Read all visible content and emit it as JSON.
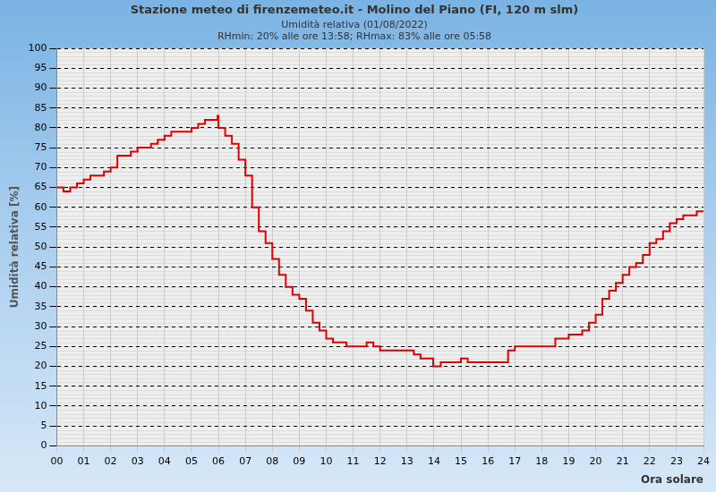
{
  "chart_data": {
    "type": "line",
    "title": "Stazione meteo di firenzemeteo.it - Molino del Piano (FI, 120 m slm)",
    "subtitle": [
      "Umidità relativa (01/08/2022)",
      "RHmin: 20% alle ore 13:58; RHmax: 83% alle ore 05:58"
    ],
    "x_label": "Ora solare",
    "y_label": "Umidità relativa [%]",
    "color": "#e00000",
    "x": [
      0,
      0.25,
      0.5,
      0.75,
      1,
      1.25,
      1.5,
      1.75,
      2,
      2.25,
      2.5,
      2.75,
      3,
      3.25,
      3.5,
      3.75,
      4,
      4.25,
      4.5,
      4.75,
      5,
      5.25,
      5.5,
      5.75,
      5.97,
      6,
      6.25,
      6.5,
      6.75,
      7,
      7.25,
      7.5,
      7.75,
      8,
      8.25,
      8.5,
      8.75,
      9,
      9.25,
      9.5,
      9.75,
      10,
      10.25,
      10.5,
      10.75,
      11,
      11.25,
      11.5,
      11.75,
      12,
      12.25,
      12.5,
      12.75,
      13,
      13.25,
      13.5,
      13.75,
      13.97,
      14.25,
      14.5,
      14.75,
      15,
      15.25,
      15.5,
      15.75,
      16,
      16.25,
      16.5,
      16.75,
      17,
      17.25,
      17.5,
      17.75,
      18,
      18.25,
      18.5,
      18.75,
      19,
      19.25,
      19.5,
      19.75,
      20,
      20.25,
      20.5,
      20.75,
      21,
      21.25,
      21.5,
      21.75,
      22,
      22.25,
      22.5,
      22.75,
      23,
      23.25,
      23.5,
      23.75,
      24
    ],
    "values": [
      65,
      64,
      65,
      66,
      67,
      68,
      68,
      69,
      70,
      73,
      73,
      74,
      75,
      75,
      76,
      77,
      78,
      79,
      79,
      79,
      80,
      81,
      82,
      82,
      83,
      80,
      78,
      76,
      72,
      68,
      60,
      54,
      51,
      47,
      43,
      40,
      38,
      37,
      34,
      31,
      29,
      27,
      26,
      26,
      25,
      25,
      25,
      26,
      25,
      24,
      24,
      24,
      24,
      24,
      23,
      22,
      22,
      20,
      21,
      21,
      21,
      22,
      21,
      21,
      21,
      21,
      21,
      21,
      24,
      25,
      25,
      25,
      25,
      25,
      25,
      27,
      27,
      28,
      28,
      29,
      31,
      33,
      37,
      39,
      41,
      43,
      45,
      46,
      48,
      51,
      52,
      54,
      56,
      57,
      58,
      58,
      59,
      59
    ],
    "xlim": [
      0,
      24
    ],
    "xticks": [
      {
        "value": 0,
        "label": "00"
      },
      {
        "value": 1,
        "label": "01"
      },
      {
        "value": 2,
        "label": "02"
      },
      {
        "value": 3,
        "label": "03"
      },
      {
        "value": 4,
        "label": "04"
      },
      {
        "value": 5,
        "label": "05"
      },
      {
        "value": 6,
        "label": "06"
      },
      {
        "value": 7,
        "label": "07"
      },
      {
        "value": 8,
        "label": "08"
      },
      {
        "value": 9,
        "label": "09"
      },
      10,
      11,
      12,
      13,
      14,
      15,
      16,
      17,
      18,
      19,
      20,
      21,
      22,
      23,
      24
    ],
    "ylim": [
      0,
      100
    ],
    "yticks": [
      0,
      5,
      10,
      15,
      20,
      25,
      30,
      35,
      40,
      45,
      50,
      55,
      60,
      65,
      70,
      75,
      80,
      85,
      90,
      95,
      100
    ],
    "grid": true
  }
}
